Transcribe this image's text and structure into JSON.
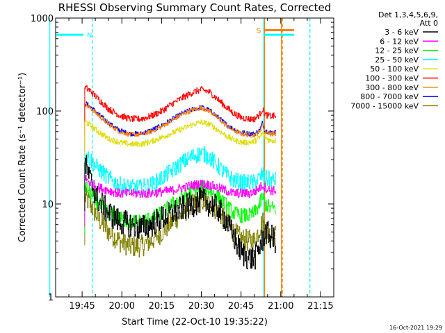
{
  "chart_data": {
    "type": "line",
    "title": "RHESSI Observing Summary Count Rates, Corrected",
    "xlabel": "Start Time (22-Oct-10 19:35:22)",
    "ylabel": "Corrected Count Rate (s⁻¹ detector⁻¹)",
    "yscale": "log",
    "ylim": [
      1,
      1000
    ],
    "xlim_minutes": [
      0,
      105
    ],
    "x_ticks": [
      {
        "label": "19:45",
        "min": 10
      },
      {
        "label": "20:00",
        "min": 25
      },
      {
        "label": "20:15",
        "min": 40
      },
      {
        "label": "20:30",
        "min": 55
      },
      {
        "label": "20:45",
        "min": 70
      },
      {
        "label": "21:00",
        "min": 85
      },
      {
        "label": "21:15",
        "min": 100
      }
    ],
    "y_ticks": [
      {
        "label": "1",
        "value": 1
      },
      {
        "label": "10",
        "value": 10
      },
      {
        "label": "100",
        "value": 100
      },
      {
        "label": "1000",
        "value": 1000
      }
    ],
    "legend_header": [
      "Det 1,3,4,5,6,9,",
      "Att 0"
    ],
    "x_minutes": [
      11,
      13,
      16,
      20,
      24,
      28,
      32,
      36,
      40,
      44,
      48,
      52,
      55,
      58,
      61,
      64,
      67,
      70,
      73,
      75,
      77,
      78,
      79,
      81,
      83
    ],
    "series": [
      {
        "name": "3 - 6 keV",
        "color": "#000000",
        "noise": 0.14,
        "values": [
          28,
          18,
          11,
          8,
          6.5,
          6,
          5.5,
          6,
          7,
          8,
          9,
          10,
          11,
          10,
          9,
          7,
          4.5,
          3,
          2.6,
          2.6,
          3.5,
          4,
          5,
          4.5,
          4
        ]
      },
      {
        "name": "6 - 12 keV",
        "color": "#ff00ff",
        "noise": 0.05,
        "values": [
          19,
          17,
          15,
          14,
          13,
          13,
          13,
          13,
          13.5,
          14,
          15,
          16,
          16.5,
          16,
          15,
          14,
          13,
          13,
          13,
          13.5,
          15,
          16,
          15,
          14,
          14
        ]
      },
      {
        "name": "12 - 25 keV",
        "color": "#00ff00",
        "noise": 0.08,
        "values": [
          16,
          13,
          10,
          8,
          7,
          6.5,
          6.5,
          7,
          8,
          10,
          12,
          14,
          15,
          14,
          12,
          10,
          8,
          7.5,
          7.5,
          8,
          10,
          12,
          10,
          9,
          9
        ]
      },
      {
        "name": "25 - 50 keV",
        "color": "#00ffff",
        "noise": 0.09,
        "values": [
          35,
          30,
          24,
          19,
          16,
          15,
          15,
          16,
          19,
          23,
          28,
          33,
          35,
          32,
          26,
          21,
          18,
          17,
          17,
          17,
          19,
          21,
          19,
          18,
          18
        ]
      },
      {
        "name": "50 - 100 keV",
        "color": "#dddd00",
        "noise": 0.03,
        "values": [
          78,
          70,
          60,
          50,
          46,
          44,
          44,
          47,
          52,
          58,
          65,
          72,
          76,
          72,
          63,
          55,
          49,
          46,
          46,
          47,
          52,
          58,
          52,
          48,
          48
        ]
      },
      {
        "name": "100 - 300 keV",
        "color": "#ff0000",
        "noise": 0.035,
        "values": [
          180,
          165,
          135,
          105,
          90,
          82,
          82,
          88,
          100,
          120,
          140,
          160,
          170,
          160,
          135,
          112,
          95,
          85,
          82,
          82,
          92,
          105,
          92,
          88,
          88
        ]
      },
      {
        "name": "300 - 800 keV",
        "color": "#ff7f00",
        "noise": 0.025,
        "values": [
          118,
          108,
          90,
          72,
          60,
          56,
          56,
          60,
          68,
          80,
          93,
          103,
          108,
          100,
          85,
          71,
          62,
          57,
          55,
          55,
          60,
          72,
          60,
          57,
          57
        ]
      },
      {
        "name": "800 - 7000 keV",
        "color": "#0000ff",
        "noise": 0.025,
        "values": [
          122,
          112,
          93,
          74,
          62,
          57,
          57,
          62,
          70,
          82,
          95,
          105,
          110,
          102,
          87,
          73,
          64,
          59,
          57,
          57,
          62,
          75,
          62,
          59,
          59
        ]
      },
      {
        "name": "7000 - 15000 keV",
        "color": "#808000",
        "noise": 0.12,
        "values": [
          12,
          10,
          7,
          5,
          4,
          3.5,
          3.5,
          4,
          5,
          6.5,
          8,
          10,
          11,
          10,
          8.5,
          6.5,
          5,
          4.2,
          4,
          4,
          5.5,
          6.5,
          5.5,
          4.5,
          4.5
        ]
      }
    ],
    "flags": [
      {
        "label": "N",
        "color": "#00ffff",
        "y_value": 660,
        "x_start": -2,
        "x_end": 10.5
      },
      {
        "label": "S",
        "color": "#ff7f00",
        "y_value": 740,
        "x_start": 79,
        "x_end": 90
      },
      {
        "label": "",
        "color": "#00ffff",
        "y_value": 660,
        "x_start": 78.6,
        "x_end": 90
      }
    ],
    "vlines": [
      {
        "x": -2.2,
        "color": "#00ffff",
        "style": "solid"
      },
      {
        "x": 13.8,
        "color": "#00ffff",
        "style": "dashed"
      },
      {
        "x": 78.6,
        "color": "#00ffff",
        "style": "solid"
      },
      {
        "x": 78.9,
        "color": "#ff7f00",
        "style": "solid"
      },
      {
        "x": 85.2,
        "color": "#ff7f00",
        "style": "solid"
      },
      {
        "x": 85.6,
        "color": "#ff7f00",
        "style": "dashed"
      },
      {
        "x": 96.0,
        "color": "#00ffff",
        "style": "dashed"
      }
    ],
    "footer": "16-Oct-2021 19:29"
  }
}
